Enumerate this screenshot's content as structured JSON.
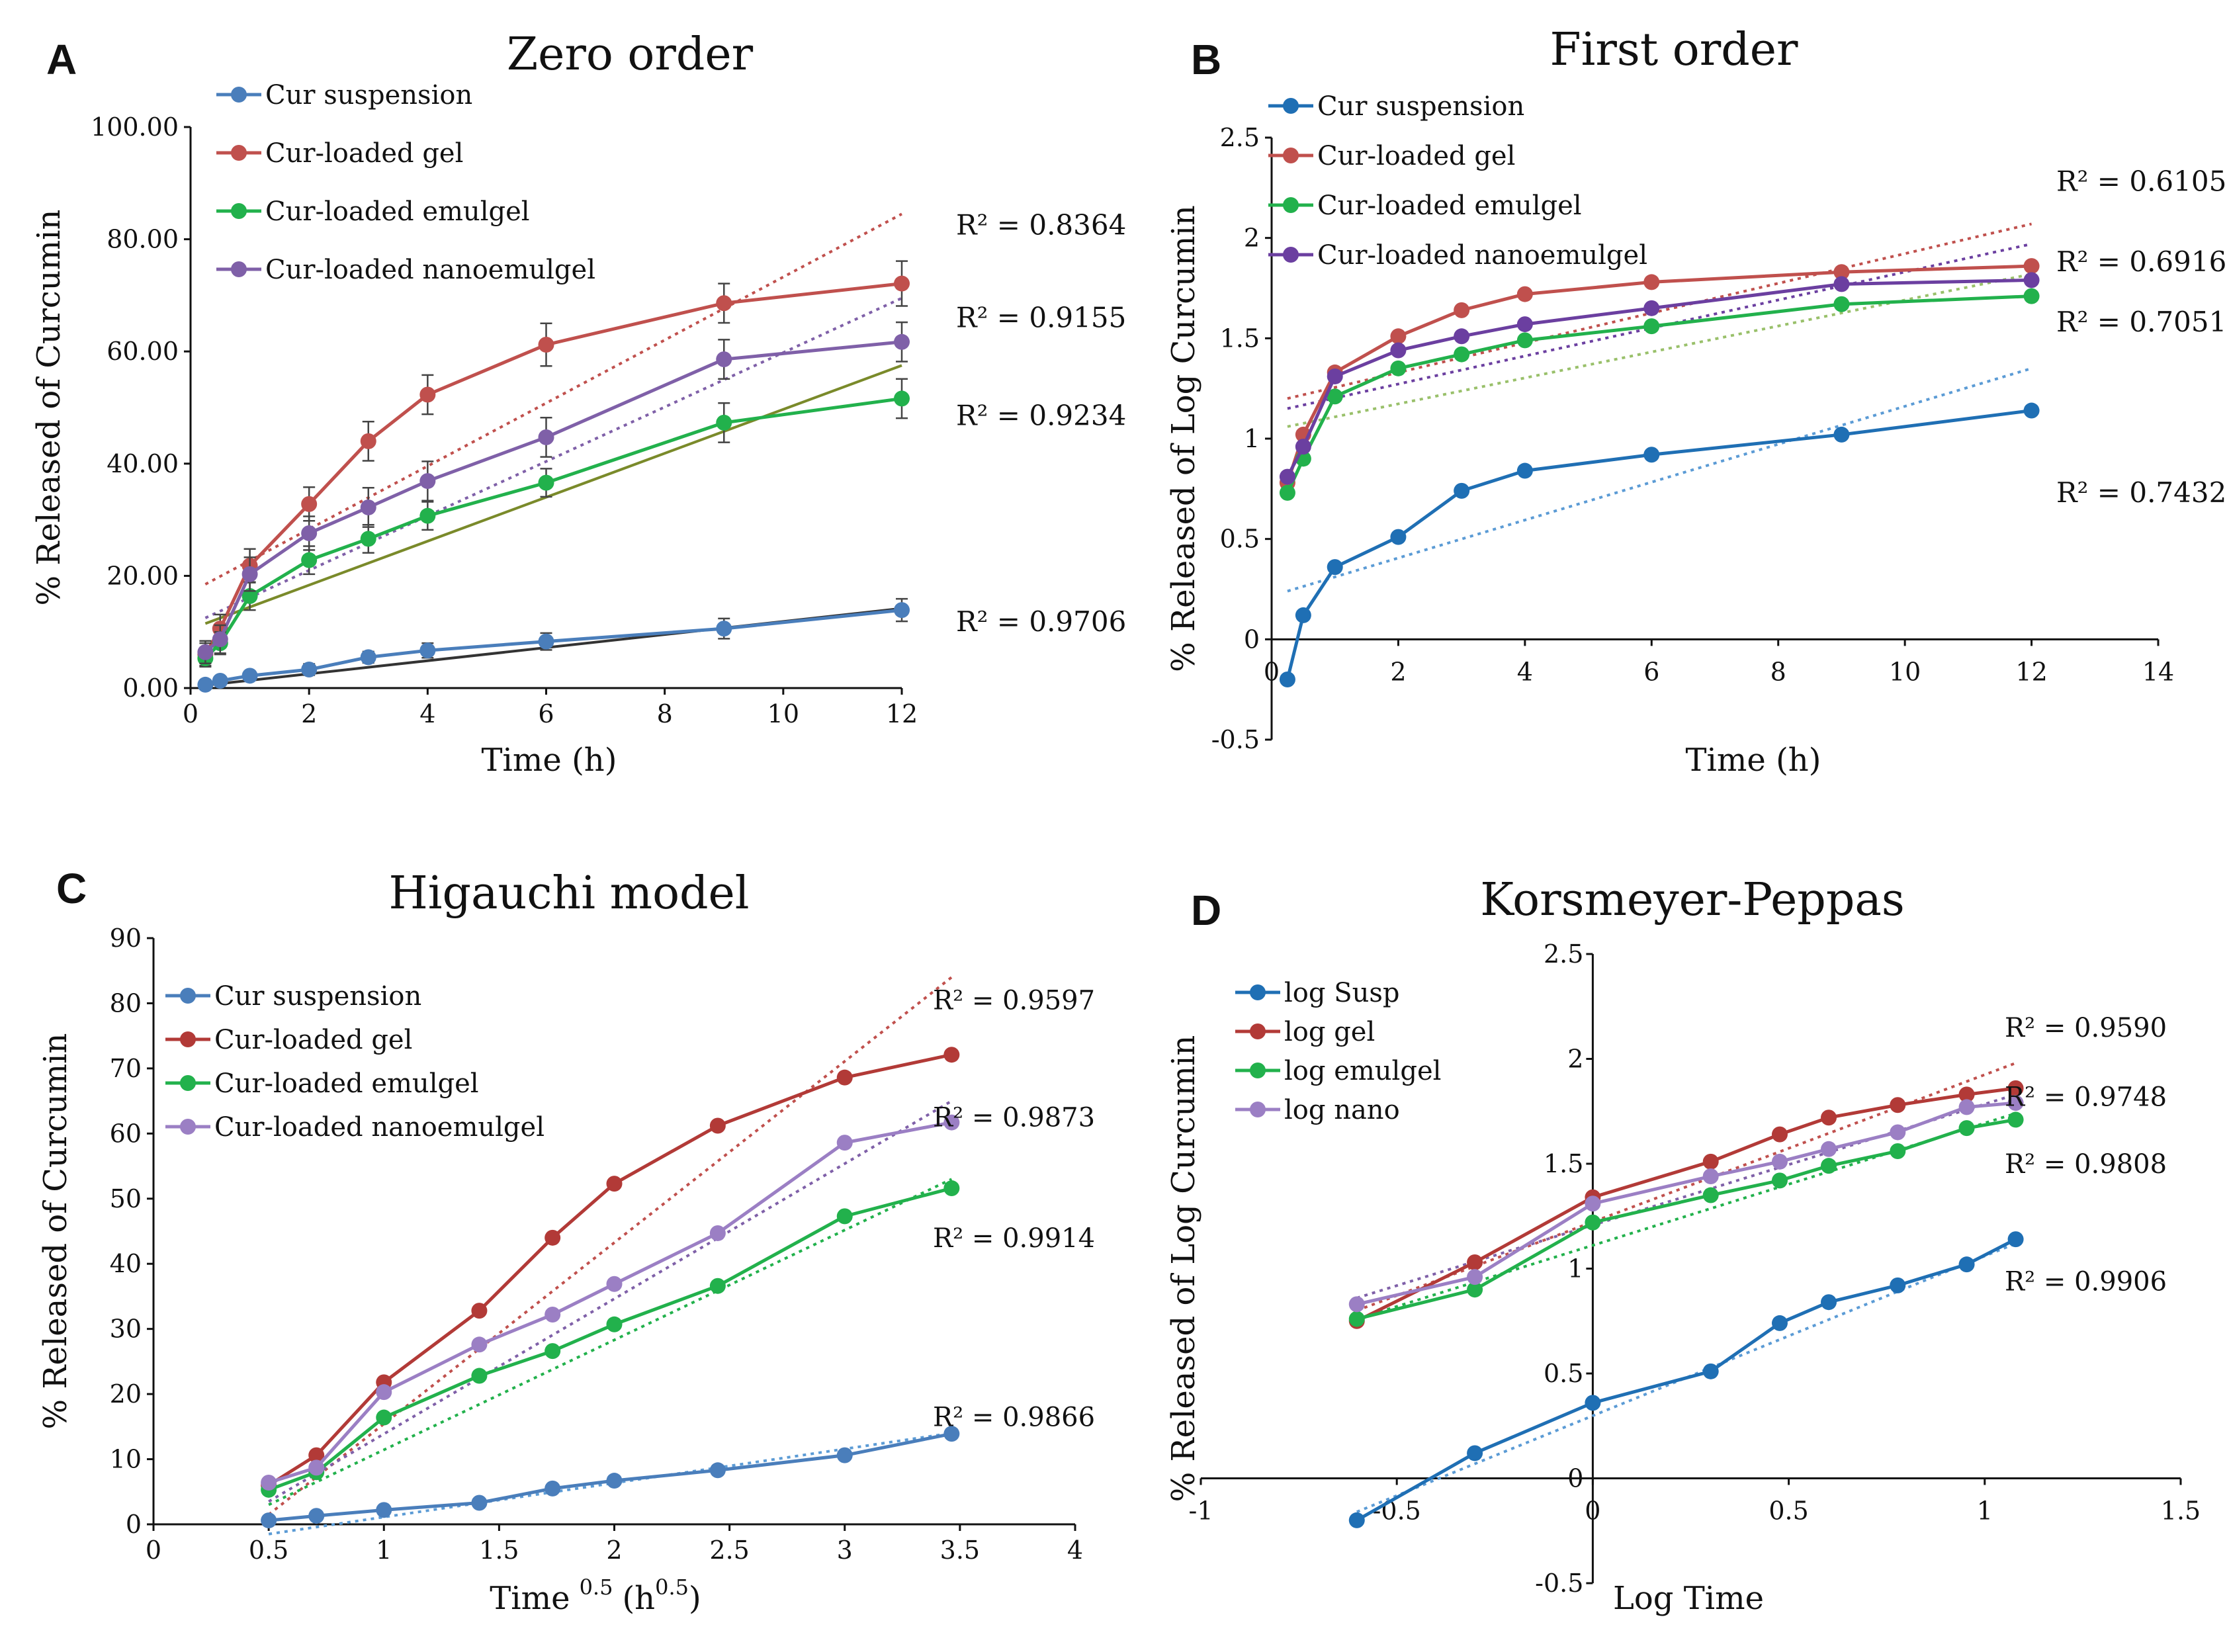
{
  "colors": {
    "susp": "#4a7ebb",
    "susp_dark": "#1f6fb4",
    "gel": "#c0504d",
    "gel_dark": "#b23a37",
    "emul": "#22b14c",
    "nano": "#7f60a8",
    "nano_dark": "#6b3fa0",
    "nano_light": "#9b7fc4",
    "trend_susp": "#333333",
    "trend_emul": "#7a8a2a",
    "trend_emul_b": "#99c06a",
    "trend_susp_b": "#5b9bd5",
    "trend_gel_b": "#d08a88",
    "trend_nano_b": "#9a86c8"
  },
  "chart_data": [
    {
      "id": "A",
      "type": "line",
      "letter": "A",
      "title": "Zero order",
      "xlabel": "Time  (h)",
      "ylabel": "% Released  of Curcumin",
      "xlim": [
        0,
        12
      ],
      "ylim": [
        0,
        100
      ],
      "xticks": [
        "0",
        "2",
        "4",
        "6",
        "8",
        "10",
        "12"
      ],
      "xtick_values": [
        0,
        2,
        4,
        6,
        8,
        10,
        12
      ],
      "yticks": [
        "0.00",
        "20.00",
        "40.00",
        "60.00",
        "80.00",
        "100.00"
      ],
      "ytick_values": [
        0,
        20,
        40,
        60,
        80,
        100
      ],
      "x": [
        0.25,
        0.5,
        1,
        2,
        3,
        4,
        6,
        9,
        12
      ],
      "error_bars": true,
      "series": [
        {
          "name": "Cur suspension",
          "color_key": "susp",
          "values": [
            0.6,
            1.3,
            2.2,
            3.3,
            5.5,
            6.7,
            8.3,
            10.6,
            13.9
          ],
          "err": [
            0.5,
            0.6,
            0.8,
            1,
            1,
            1.3,
            1.5,
            1.8,
            2
          ]
        },
        {
          "name": "Cur-loaded gel",
          "color_key": "gel",
          "values": [
            6,
            10.6,
            21.8,
            32.8,
            44,
            52.3,
            61.2,
            68.6,
            72.1
          ],
          "err": [
            2,
            2.5,
            3,
            3,
            3.5,
            3.5,
            3.8,
            3.5,
            4
          ]
        },
        {
          "name": "Cur-loaded emulgel",
          "color_key": "emul",
          "values": [
            5.3,
            8,
            16.4,
            22.8,
            26.6,
            30.7,
            36.6,
            47.3,
            51.6
          ],
          "err": [
            1.5,
            2,
            2.5,
            2.5,
            2.5,
            2.5,
            2.5,
            3.5,
            3.5
          ]
        },
        {
          "name": "Cur-loaded nanoemulgel",
          "color_key": "nano",
          "values": [
            6.4,
            8.7,
            20.3,
            27.6,
            32.2,
            36.9,
            44.7,
            58.6,
            61.7
          ],
          "err": [
            2,
            2.5,
            3,
            3,
            3.5,
            3.5,
            3.5,
            3.5,
            3.5
          ]
        }
      ],
      "trendlines": [
        {
          "color_key": "gel",
          "x": [
            0.25,
            12
          ],
          "y": [
            18.5,
            84.5
          ],
          "dashed": true
        },
        {
          "color_key": "nano",
          "x": [
            0.25,
            12
          ],
          "y": [
            12.5,
            69.5
          ],
          "dashed": true
        },
        {
          "color_key": "trend_emul",
          "x": [
            0.25,
            12
          ],
          "y": [
            11.5,
            57.5
          ],
          "dashed": false
        },
        {
          "color_key": "trend_susp",
          "x": [
            0.25,
            12
          ],
          "y": [
            0.5,
            14.2
          ],
          "dashed": false
        }
      ],
      "r2_labels": [
        "R² = 0.8364",
        "R² = 0.9155",
        "R² = 0.9234",
        "R² = 0.9706"
      ],
      "r2_y": [
        82.5,
        66,
        48.5,
        11.8
      ]
    },
    {
      "id": "B",
      "type": "line",
      "letter": "B",
      "title": "First order",
      "xlabel": "Time  (h)",
      "ylabel": "% Released  of Log Curcumin",
      "xlim": [
        0,
        14
      ],
      "ylim": [
        -0.5,
        2.5
      ],
      "xticks": [
        "0",
        "2",
        "4",
        "6",
        "8",
        "10",
        "12",
        "14"
      ],
      "xtick_values": [
        0,
        2,
        4,
        6,
        8,
        10,
        12,
        14
      ],
      "yticks": [
        "-0.5",
        "0",
        "0.5",
        "1",
        "1.5",
        "2",
        "2.5"
      ],
      "ytick_values": [
        -0.5,
        0,
        0.5,
        1,
        1.5,
        2,
        2.5
      ],
      "x": [
        0.25,
        0.5,
        1,
        2,
        3,
        4,
        6,
        9,
        12
      ],
      "error_bars": false,
      "series": [
        {
          "name": "Cur suspension",
          "color_key": "susp_dark",
          "values": [
            -0.2,
            0.12,
            0.36,
            0.51,
            0.74,
            0.84,
            0.92,
            1.02,
            1.14
          ]
        },
        {
          "name": "Cur-loaded gel",
          "color_key": "gel",
          "values": [
            0.78,
            1.02,
            1.33,
            1.51,
            1.64,
            1.72,
            1.78,
            1.83,
            1.86
          ]
        },
        {
          "name": "Cur-loaded emulgel",
          "color_key": "emul",
          "values": [
            0.73,
            0.9,
            1.21,
            1.35,
            1.42,
            1.49,
            1.56,
            1.67,
            1.71
          ]
        },
        {
          "name": "Cur-loaded nanoemulgel",
          "color_key": "nano_dark",
          "values": [
            0.81,
            0.96,
            1.31,
            1.44,
            1.51,
            1.57,
            1.65,
            1.77,
            1.79
          ]
        }
      ],
      "trendlines": [
        {
          "color_key": "gel",
          "x": [
            0.25,
            12
          ],
          "y": [
            1.2,
            2.07
          ],
          "dashed": true
        },
        {
          "color_key": "nano_dark",
          "x": [
            0.25,
            12
          ],
          "y": [
            1.15,
            1.97
          ],
          "dashed": true
        },
        {
          "color_key": "trend_emul_b",
          "x": [
            0.25,
            12
          ],
          "y": [
            1.06,
            1.82
          ],
          "dashed": true
        },
        {
          "color_key": "trend_susp_b",
          "x": [
            0.25,
            12
          ],
          "y": [
            0.24,
            1.35
          ],
          "dashed": true
        }
      ],
      "r2_labels": [
        "R² = 0.6105",
        "R² = 0.6916",
        "R² = 0.7051",
        "R² = 0.7432"
      ],
      "r2_y": [
        2.28,
        1.88,
        1.58,
        0.73
      ]
    },
    {
      "id": "C",
      "type": "line",
      "letter": "C",
      "title": "Higauchi model",
      "xlabel_main": "Time",
      "xlabel_sup1": "0.5",
      "xlabel_unit": "(h",
      "xlabel_sup2": "0.5",
      "xlabel_close": ")",
      "ylabel": "% Released  of Curcumin",
      "xlim": [
        0,
        4
      ],
      "ylim": [
        0,
        90
      ],
      "xticks": [
        "0",
        "0.5",
        "1",
        "1.5",
        "2",
        "2.5",
        "3",
        "3.5",
        "4"
      ],
      "xtick_values": [
        0,
        0.5,
        1,
        1.5,
        2,
        2.5,
        3,
        3.5,
        4
      ],
      "yticks": [
        "0",
        "10",
        "20",
        "30",
        "40",
        "50",
        "60",
        "70",
        "80",
        "90"
      ],
      "ytick_values": [
        0,
        10,
        20,
        30,
        40,
        50,
        60,
        70,
        80,
        90
      ],
      "x": [
        0.5,
        0.707,
        1,
        1.414,
        1.732,
        2,
        2.449,
        3,
        3.464
      ],
      "error_bars": false,
      "series": [
        {
          "name": "Cur suspension",
          "color_key": "susp",
          "values": [
            0.6,
            1.3,
            2.2,
            3.3,
            5.5,
            6.7,
            8.3,
            10.6,
            13.9
          ]
        },
        {
          "name": "Cur-loaded gel",
          "color_key": "gel_dark",
          "values": [
            6,
            10.6,
            21.8,
            32.8,
            44,
            52.3,
            61.2,
            68.6,
            72.1
          ]
        },
        {
          "name": "Cur-loaded emulgel",
          "color_key": "emul",
          "values": [
            5.3,
            8,
            16.4,
            22.8,
            26.6,
            30.7,
            36.6,
            47.3,
            51.6
          ]
        },
        {
          "name": "Cur-loaded nanoemulgel",
          "color_key": "nano_light",
          "values": [
            6.4,
            8.7,
            20.3,
            27.6,
            32.2,
            36.9,
            44.7,
            58.6,
            61.7
          ]
        }
      ],
      "trendlines": [
        {
          "color_key": "gel",
          "x": [
            0.5,
            3.464
          ],
          "y": [
            1.5,
            84
          ],
          "dashed": true
        },
        {
          "color_key": "nano",
          "x": [
            0.5,
            3.464
          ],
          "y": [
            3.5,
            65
          ],
          "dashed": true
        },
        {
          "color_key": "emul",
          "x": [
            0.5,
            3.464
          ],
          "y": [
            3,
            53
          ],
          "dashed": true
        },
        {
          "color_key": "trend_susp_b",
          "x": [
            0.5,
            3.464
          ],
          "y": [
            -1.5,
            14
          ],
          "dashed": true
        }
      ],
      "r2_labels": [
        "R² = 0.9597",
        "R² = 0.9873",
        "R² = 0.9914",
        "R² = 0.9866"
      ],
      "r2_y": [
        80.5,
        62.5,
        44,
        16.5
      ]
    },
    {
      "id": "D",
      "type": "line",
      "letter": "D",
      "title": "Korsmeyer-Peppas",
      "xlabel": "Log Time",
      "ylabel": "% Released  of Log Curcumin",
      "xlim": [
        -1,
        1.5
      ],
      "ylim": [
        -0.5,
        2.5
      ],
      "xticks": [
        "-1",
        "-0.5",
        "0",
        "0.5",
        "1",
        "1.5"
      ],
      "xtick_values": [
        -1,
        -0.5,
        0,
        0.5,
        1,
        1.5
      ],
      "yticks": [
        "-0.5",
        "0",
        "0.5",
        "1",
        "1.5",
        "2",
        "2.5"
      ],
      "ytick_values": [
        -0.5,
        0,
        0.5,
        1,
        1.5,
        2,
        2.5
      ],
      "x": [
        -0.602,
        -0.301,
        0,
        0.301,
        0.477,
        0.602,
        0.778,
        0.954,
        1.079
      ],
      "error_bars": false,
      "series": [
        {
          "name": "log Susp",
          "color_key": "susp_dark",
          "values": [
            -0.2,
            0.12,
            0.36,
            0.51,
            0.74,
            0.84,
            0.92,
            1.02,
            1.14
          ]
        },
        {
          "name": "log gel",
          "color_key": "gel_dark",
          "values": [
            0.75,
            1.03,
            1.34,
            1.51,
            1.64,
            1.72,
            1.78,
            1.83,
            1.86
          ]
        },
        {
          "name": "log emulgel",
          "color_key": "emul",
          "values": [
            0.76,
            0.9,
            1.22,
            1.35,
            1.42,
            1.49,
            1.56,
            1.67,
            1.71
          ]
        },
        {
          "name": "log nano",
          "color_key": "nano_light",
          "values": [
            0.83,
            0.96,
            1.31,
            1.44,
            1.51,
            1.57,
            1.65,
            1.77,
            1.79
          ]
        }
      ],
      "trendlines": [
        {
          "color_key": "gel",
          "x": [
            -0.602,
            1.079
          ],
          "y": [
            0.8,
            1.98
          ],
          "dashed": true
        },
        {
          "color_key": "nano",
          "x": [
            -0.602,
            1.079
          ],
          "y": [
            0.86,
            1.83
          ],
          "dashed": true
        },
        {
          "color_key": "emul",
          "x": [
            -0.602,
            1.079
          ],
          "y": [
            0.76,
            1.74
          ],
          "dashed": true
        },
        {
          "color_key": "trend_susp_b",
          "x": [
            -0.602,
            1.079
          ],
          "y": [
            -0.16,
            1.12
          ],
          "dashed": true
        }
      ],
      "r2_labels": [
        "R² = 0.9590",
        "R² = 0.9748",
        "R² = 0.9808",
        "R² = 0.9906"
      ],
      "r2_y": [
        2.15,
        1.82,
        1.5,
        0.94
      ]
    }
  ]
}
